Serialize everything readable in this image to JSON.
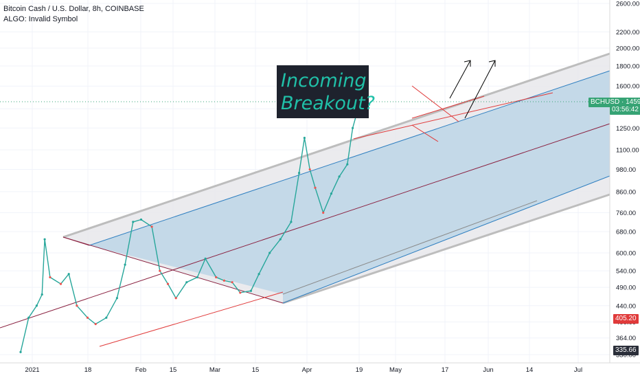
{
  "legend": {
    "title": "Bitcoin Cash / U.S. Dollar, 8h, COINBASE",
    "indicator": "ALGO: Invalid Symbol"
  },
  "annotation": {
    "line1": "Incoming",
    "line2": "Breakout?"
  },
  "price_tag": {
    "symbol": "BCHUSD",
    "price": "1459.87",
    "countdown": "03:56:42"
  },
  "tags": {
    "red": "405.20",
    "dark": "335.66"
  },
  "colors": {
    "up": "#26a69a",
    "down": "#ef5350",
    "channel": "#b7d3e6",
    "accent_red": "#e03a3a"
  },
  "chart_data": {
    "type": "line",
    "title": "Bitcoin Cash / U.S. Dollar, 8h, COINBASE",
    "y_scale": "log",
    "y_ticks": [
      2600,
      2200,
      2000,
      1800,
      1600,
      1400,
      1250,
      1100,
      980,
      860,
      760,
      680,
      600,
      540,
      490,
      440,
      400,
      364,
      330
    ],
    "x_ticks": [
      "2021",
      "18",
      "Feb",
      "15",
      "Mar",
      "15",
      "Apr",
      "19",
      "May",
      "17",
      "Jun",
      "14",
      "Jul"
    ],
    "ylim": [
      310,
      2900
    ],
    "series": [
      {
        "values": [
          [
            "2021-01-01",
            335
          ],
          [
            "2021-01-04",
            410
          ],
          [
            "2021-01-07",
            440
          ],
          [
            "2021-01-09",
            470
          ],
          [
            "2021-01-10",
            650
          ],
          [
            "2021-01-12",
            520
          ],
          [
            "2021-01-16",
            500
          ],
          [
            "2021-01-19",
            530
          ],
          [
            "2021-01-22",
            440
          ],
          [
            "2021-01-26",
            410
          ],
          [
            "2021-01-29",
            395
          ],
          [
            "2021-02-02",
            410
          ],
          [
            "2021-02-06",
            460
          ],
          [
            "2021-02-09",
            560
          ],
          [
            "2021-02-12",
            720
          ],
          [
            "2021-02-15",
            730
          ],
          [
            "2021-02-19",
            700
          ],
          [
            "2021-02-22",
            540
          ],
          [
            "2021-02-25",
            500
          ],
          [
            "2021-02-28",
            460
          ],
          [
            "2021-03-04",
            505
          ],
          [
            "2021-03-08",
            520
          ],
          [
            "2021-03-11",
            580
          ],
          [
            "2021-03-15",
            520
          ],
          [
            "2021-03-18",
            510
          ],
          [
            "2021-03-21",
            505
          ],
          [
            "2021-03-24",
            475
          ],
          [
            "2021-03-28",
            480
          ],
          [
            "2021-03-31",
            530
          ],
          [
            "2021-04-04",
            600
          ],
          [
            "2021-04-08",
            650
          ],
          [
            "2021-04-12",
            720
          ],
          [
            "2021-04-15",
            960
          ],
          [
            "2021-04-17",
            1180
          ],
          [
            "2021-04-19",
            980
          ],
          [
            "2021-04-21",
            880
          ],
          [
            "2021-04-24",
            760
          ],
          [
            "2021-04-27",
            850
          ],
          [
            "2021-04-30",
            940
          ],
          [
            "2021-05-03",
            1010
          ],
          [
            "2021-05-05",
            1250
          ],
          [
            "2021-05-07",
            1400
          ],
          [
            "2021-05-08",
            1450
          ],
          [
            "2021-05-10",
            1460
          ]
        ]
      }
    ],
    "annotations": [
      "Incoming",
      "Breakout?"
    ]
  }
}
